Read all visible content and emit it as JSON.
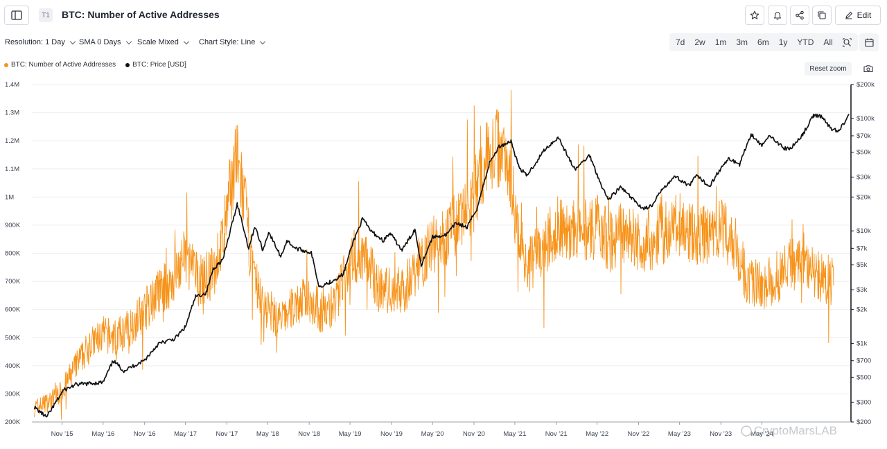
{
  "header": {
    "tab_badge": "T1",
    "title": "BTC: Number of Active Addresses",
    "edit_label": "Edit"
  },
  "controls": {
    "resolution": "Resolution: 1 Day",
    "sma": "SMA 0 Days",
    "scale": "Scale Mixed",
    "chart_style": "Chart Style: Line",
    "ranges": [
      "7d",
      "2w",
      "1m",
      "3m",
      "6m",
      "1y",
      "YTD",
      "All"
    ]
  },
  "legend": {
    "series1": "BTC: Number of Active Addresses",
    "series2": "BTC: Price [USD]"
  },
  "reset_zoom": "Reset zoom",
  "watermark": "CryptoMarsLAB",
  "colors": {
    "active_addresses": "#f7931a",
    "price": "#111111",
    "grid": "#eceef1"
  },
  "chart_data": {
    "type": "line",
    "x_tick_labels": [
      "Nov '15",
      "May '16",
      "Nov '16",
      "May '17",
      "Nov '17",
      "May '18",
      "Nov '18",
      "May '19",
      "Nov '19",
      "May '20",
      "Nov '20",
      "May '21",
      "Nov '21",
      "May '22",
      "Nov '22",
      "May '23",
      "Nov '23",
      "May '24"
    ],
    "y_left_ticks": [
      "200K",
      "300K",
      "400K",
      "500K",
      "600K",
      "700K",
      "800K",
      "900K",
      "1M",
      "1.1M",
      "1.2M",
      "1.3M",
      "1.4M"
    ],
    "y_right_ticks": [
      "$200",
      "$300",
      "$500",
      "$700",
      "$1k",
      "$2k",
      "$3k",
      "$5k",
      "$7k",
      "$10k",
      "$20k",
      "$30k",
      "$50k",
      "$70k",
      "$100k",
      "$200k"
    ],
    "y_left_range": [
      200000,
      1400000
    ],
    "y_right_range": [
      200,
      200000
    ],
    "y_right_scale": "log",
    "grid": true,
    "series": [
      {
        "name": "BTC: Number of Active Addresses",
        "axis": "left",
        "color": "#f7931a",
        "points": [
          [
            "2015-07-01",
            250000
          ],
          [
            "2015-09-01",
            270000
          ],
          [
            "2015-11-01",
            310000
          ],
          [
            "2016-01-01",
            400000
          ],
          [
            "2016-03-01",
            470000
          ],
          [
            "2016-05-01",
            510000
          ],
          [
            "2016-07-01",
            500000
          ],
          [
            "2016-09-01",
            540000
          ],
          [
            "2016-11-01",
            600000
          ],
          [
            "2017-01-01",
            660000
          ],
          [
            "2017-03-01",
            700000
          ],
          [
            "2017-05-01",
            790000
          ],
          [
            "2017-07-01",
            700000
          ],
          [
            "2017-09-01",
            730000
          ],
          [
            "2017-10-15",
            850000
          ],
          [
            "2017-12-10",
            1150000
          ],
          [
            "2018-01-15",
            1000000
          ],
          [
            "2018-03-01",
            700000
          ],
          [
            "2018-05-01",
            600000
          ],
          [
            "2018-07-01",
            560000
          ],
          [
            "2018-09-01",
            620000
          ],
          [
            "2018-11-01",
            640000
          ],
          [
            "2019-01-01",
            580000
          ],
          [
            "2019-03-01",
            630000
          ],
          [
            "2019-05-01",
            780000
          ],
          [
            "2019-07-01",
            800000
          ],
          [
            "2019-09-01",
            680000
          ],
          [
            "2019-11-01",
            660000
          ],
          [
            "2020-01-01",
            680000
          ],
          [
            "2020-03-01",
            760000
          ],
          [
            "2020-05-01",
            830000
          ],
          [
            "2020-07-01",
            860000
          ],
          [
            "2020-09-01",
            920000
          ],
          [
            "2020-11-01",
            1000000
          ],
          [
            "2021-01-01",
            1150000
          ],
          [
            "2021-02-15",
            1180000
          ],
          [
            "2021-04-01",
            1150000
          ],
          [
            "2021-05-15",
            870000
          ],
          [
            "2021-07-01",
            760000
          ],
          [
            "2021-09-01",
            800000
          ],
          [
            "2021-11-01",
            900000
          ],
          [
            "2022-01-01",
            880000
          ],
          [
            "2022-03-01",
            880000
          ],
          [
            "2022-05-01",
            880000
          ],
          [
            "2022-07-01",
            840000
          ],
          [
            "2022-09-01",
            880000
          ],
          [
            "2022-11-01",
            840000
          ],
          [
            "2023-01-01",
            850000
          ],
          [
            "2023-03-01",
            880000
          ],
          [
            "2023-05-01",
            900000
          ],
          [
            "2023-07-01",
            870000
          ],
          [
            "2023-09-01",
            860000
          ],
          [
            "2023-11-01",
            880000
          ],
          [
            "2024-01-01",
            840000
          ],
          [
            "2024-03-01",
            700000
          ],
          [
            "2024-05-01",
            680000
          ],
          [
            "2024-07-01",
            710000
          ],
          [
            "2024-09-01",
            760000
          ],
          [
            "2024-11-01",
            780000
          ],
          [
            "2025-01-01",
            720000
          ],
          [
            "2025-03-15",
            700000
          ]
        ]
      },
      {
        "name": "BTC: Price [USD]",
        "axis": "right",
        "color": "#111111",
        "points": [
          [
            "2015-07-01",
            270
          ],
          [
            "2015-08-25",
            220
          ],
          [
            "2015-11-05",
            380
          ],
          [
            "2016-01-01",
            430
          ],
          [
            "2016-05-01",
            450
          ],
          [
            "2016-06-15",
            700
          ],
          [
            "2016-08-01",
            570
          ],
          [
            "2016-11-01",
            710
          ],
          [
            "2017-01-01",
            990
          ],
          [
            "2017-03-15",
            1100
          ],
          [
            "2017-05-01",
            1400
          ],
          [
            "2017-06-15",
            2600
          ],
          [
            "2017-08-01",
            2800
          ],
          [
            "2017-09-01",
            4600
          ],
          [
            "2017-10-15",
            5600
          ],
          [
            "2017-12-17",
            17500
          ],
          [
            "2018-02-06",
            7000
          ],
          [
            "2018-03-05",
            11000
          ],
          [
            "2018-04-10",
            6700
          ],
          [
            "2018-05-05",
            9800
          ],
          [
            "2018-06-28",
            5900
          ],
          [
            "2018-07-25",
            8200
          ],
          [
            "2018-09-01",
            7000
          ],
          [
            "2018-11-10",
            6400
          ],
          [
            "2018-12-15",
            3200
          ],
          [
            "2019-02-01",
            3500
          ],
          [
            "2019-04-01",
            4100
          ],
          [
            "2019-05-15",
            8000
          ],
          [
            "2019-06-26",
            12800
          ],
          [
            "2019-08-01",
            10000
          ],
          [
            "2019-09-25",
            8200
          ],
          [
            "2019-10-26",
            9500
          ],
          [
            "2019-12-18",
            6700
          ],
          [
            "2020-02-13",
            10300
          ],
          [
            "2020-03-12",
            5000
          ],
          [
            "2020-05-01",
            8800
          ],
          [
            "2020-07-01",
            9200
          ],
          [
            "2020-08-15",
            11800
          ],
          [
            "2020-10-01",
            10700
          ],
          [
            "2020-11-15",
            16000
          ],
          [
            "2021-01-08",
            40000
          ],
          [
            "2021-02-20",
            56000
          ],
          [
            "2021-04-14",
            63000
          ],
          [
            "2021-05-19",
            37000
          ],
          [
            "2021-06-22",
            31000
          ],
          [
            "2021-08-01",
            40000
          ],
          [
            "2021-09-07",
            52000
          ],
          [
            "2021-11-10",
            68000
          ],
          [
            "2022-01-22",
            35000
          ],
          [
            "2022-03-29",
            47000
          ],
          [
            "2022-05-12",
            28000
          ],
          [
            "2022-06-18",
            19000
          ],
          [
            "2022-08-14",
            24500
          ],
          [
            "2022-10-01",
            19500
          ],
          [
            "2022-11-21",
            15800
          ],
          [
            "2023-01-01",
            16600
          ],
          [
            "2023-02-15",
            24000
          ],
          [
            "2023-04-14",
            30500
          ],
          [
            "2023-06-15",
            25000
          ],
          [
            "2023-07-13",
            31000
          ],
          [
            "2023-09-11",
            25000
          ],
          [
            "2023-10-25",
            34500
          ],
          [
            "2023-12-08",
            44000
          ],
          [
            "2024-01-23",
            39000
          ],
          [
            "2024-03-14",
            73000
          ],
          [
            "2024-05-01",
            57000
          ],
          [
            "2024-06-07",
            71000
          ],
          [
            "2024-08-05",
            54000
          ],
          [
            "2024-09-06",
            54000
          ],
          [
            "2024-10-29",
            72000
          ],
          [
            "2024-12-17",
            106000
          ],
          [
            "2025-01-20",
            105000
          ],
          [
            "2025-02-28",
            82000
          ],
          [
            "2025-04-08",
            77000
          ],
          [
            "2025-05-22",
            109000
          ]
        ]
      }
    ]
  }
}
